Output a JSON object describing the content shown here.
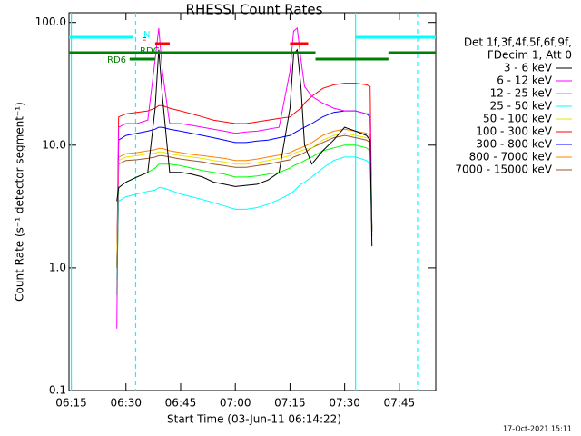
{
  "chart_data": {
    "type": "line",
    "title": "RHESSI Count Rates",
    "xlabel": "Start Time (03-Jun-11 06:14:22)",
    "ylabel": "Count Rate (s⁻¹ detector segment⁻¹)",
    "log_y": true,
    "xlim": [
      "06:14:22",
      "07:55"
    ],
    "xticks": [
      "06:15",
      "06:30",
      "06:45",
      "07:00",
      "07:15",
      "07:30",
      "07:45"
    ],
    "ylim": [
      0.1,
      120
    ],
    "yticks": [
      0.1,
      {
        "value": 1,
        "label": "1.0"
      },
      {
        "value": 10,
        "label": "10.0"
      },
      {
        "value": 100,
        "label": "100.0"
      }
    ],
    "legend_header": [
      "Det 1f,3f,4f,5f,6f,9f,",
      "FDecim 1, Att 0"
    ],
    "timestamp": "17-Oct-2021 15:11",
    "x": [
      "06:27:30",
      "06:28",
      "06:30",
      "06:33",
      "06:36",
      "06:38",
      "06:39",
      "06:40",
      "06:42",
      "06:45",
      "06:48",
      "06:51",
      "06:54",
      "06:57",
      "07:00",
      "07:03",
      "07:06",
      "07:09",
      "07:12",
      "07:15",
      "07:16",
      "07:17",
      "07:18",
      "07:19",
      "07:21",
      "07:24",
      "07:27",
      "07:30",
      "07:33",
      "07:36",
      "07:37",
      "07:37:30"
    ],
    "series": [
      {
        "name": "3 - 6 keV",
        "color": "#000000",
        "values": [
          3.5,
          4.5,
          5,
          5.5,
          6,
          20,
          60,
          25,
          6,
          6,
          5.8,
          5.5,
          5,
          4.8,
          4.6,
          4.7,
          4.8,
          5.2,
          6,
          20,
          55,
          60,
          30,
          10,
          7,
          9,
          11,
          14,
          13,
          12,
          11,
          1.5
        ]
      },
      {
        "name": "6 - 12 keV",
        "color": "#ff00ff",
        "values": [
          0.32,
          14,
          15,
          15,
          16,
          50,
          90,
          40,
          15,
          15,
          14.5,
          14,
          13.5,
          13,
          12.5,
          12.8,
          13,
          13.5,
          14,
          40,
          85,
          90,
          50,
          30,
          25,
          22,
          20,
          19,
          19,
          18,
          18,
          1.8
        ]
      },
      {
        "name": "12 - 25 keV",
        "color": "#00ff00",
        "values": [
          0.6,
          4.5,
          5,
          5.5,
          6,
          6.5,
          7,
          7,
          7,
          6.8,
          6.5,
          6.2,
          6,
          5.8,
          5.5,
          5.5,
          5.6,
          5.8,
          6,
          6.5,
          6.8,
          7,
          7.2,
          7.5,
          8,
          9,
          9.5,
          10,
          10,
          9.5,
          9,
          2
        ]
      },
      {
        "name": "25 - 50 keV",
        "color": "#00ffff",
        "values": [
          0.8,
          3.5,
          3.8,
          4,
          4.2,
          4.3,
          4.5,
          4.5,
          4.3,
          4,
          3.8,
          3.6,
          3.4,
          3.2,
          3,
          3,
          3.1,
          3.3,
          3.6,
          4,
          4.2,
          4.5,
          4.8,
          5,
          5.5,
          6.5,
          7.5,
          8,
          8,
          7.5,
          7,
          2
        ]
      },
      {
        "name": "50 - 100 keV",
        "color": "#e6e600",
        "values": [
          1,
          7.5,
          8,
          8.2,
          8.5,
          8.6,
          8.8,
          8.8,
          8.5,
          8.2,
          8,
          7.8,
          7.5,
          7.3,
          7,
          7,
          7.2,
          7.5,
          7.8,
          8.2,
          8.5,
          8.8,
          9,
          9.2,
          9.5,
          11,
          12,
          12.5,
          12,
          11.5,
          11,
          2
        ]
      },
      {
        "name": "100 - 300 keV",
        "color": "#ff0000",
        "values": [
          1,
          17,
          18,
          18.5,
          19,
          20,
          21,
          21,
          20,
          19,
          18,
          17,
          16,
          15.5,
          15,
          15,
          15.5,
          16,
          16.5,
          17,
          18,
          19,
          20,
          22,
          25,
          29,
          31,
          32,
          32,
          31,
          30,
          2
        ]
      },
      {
        "name": "300 - 800 keV",
        "color": "#0000ff",
        "values": [
          1,
          11,
          12,
          12.5,
          13,
          13.5,
          14,
          14,
          13.5,
          13,
          12.5,
          12,
          11.5,
          11,
          10.5,
          10.5,
          10.8,
          11,
          11.5,
          12,
          12.5,
          13,
          13.5,
          14,
          15,
          17,
          18.5,
          19,
          19,
          18,
          17,
          2
        ]
      },
      {
        "name": "800 - 7000 keV",
        "color": "#ff8000",
        "values": [
          1,
          8,
          8.5,
          8.7,
          9,
          9.2,
          9.4,
          9.4,
          9,
          8.7,
          8.4,
          8.2,
          8,
          7.8,
          7.5,
          7.5,
          7.7,
          8,
          8.3,
          8.7,
          9,
          9.3,
          9.5,
          9.8,
          10.5,
          12,
          13,
          13.5,
          13,
          12.5,
          12,
          2
        ]
      },
      {
        "name": "7000 - 15000 keV",
        "color": "#a0522d",
        "values": [
          1,
          7,
          7.5,
          7.6,
          7.8,
          8,
          8.2,
          8.2,
          8,
          7.7,
          7.5,
          7.3,
          7,
          6.8,
          6.6,
          6.6,
          6.8,
          7,
          7.3,
          7.6,
          8,
          8.2,
          8.4,
          8.7,
          9.5,
          10.5,
          11.5,
          12,
          11.5,
          11,
          10.5,
          2
        ]
      }
    ],
    "flags": [
      {
        "label": "N",
        "color": "#00ffff",
        "segments": [
          [
            "06:14:22",
            "06:32"
          ],
          [
            "07:33",
            "07:55"
          ]
        ]
      },
      {
        "label": "F",
        "color": "#ff0000",
        "segments": [
          [
            "06:38",
            "06:42"
          ],
          [
            "07:15",
            "07:20"
          ]
        ]
      },
      {
        "label": "RDC",
        "color": "#008000",
        "segments": [
          [
            "06:14:22",
            "07:22"
          ],
          [
            "07:42",
            "07:55"
          ]
        ]
      },
      {
        "label": "RD6",
        "color": "#008000",
        "segments": [
          [
            "06:31",
            "06:38"
          ],
          [
            "07:22",
            "07:42"
          ]
        ]
      }
    ],
    "vlines": [
      {
        "x": "06:15",
        "color": "#00ffff",
        "dashed": false
      },
      {
        "x": "06:32:40",
        "color": "#00ffff",
        "dashed": true
      },
      {
        "x": "07:33",
        "color": "#00ffff",
        "dashed": false
      },
      {
        "x": "07:50",
        "color": "#00ffff",
        "dashed": true
      }
    ]
  }
}
